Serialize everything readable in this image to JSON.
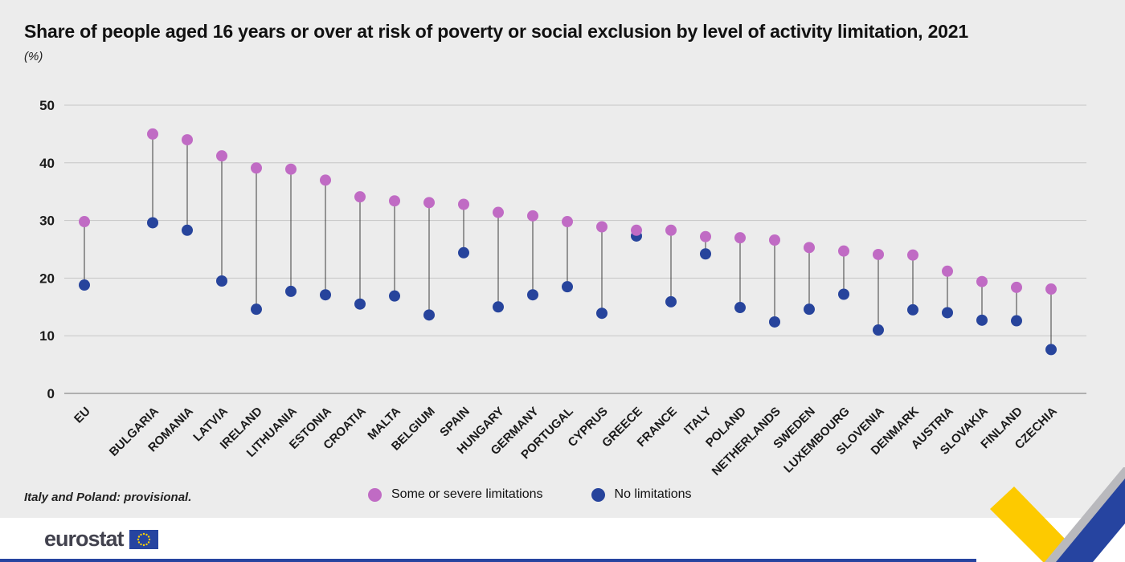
{
  "header": {
    "subtitle": "(%)"
  },
  "note_label": "Italy and Poland: provisional.",
  "footer": {
    "logo_text": "eurostat"
  },
  "chart_data": {
    "type": "scatter",
    "variant": "dumbbell",
    "title": "Share of people aged 16 years or over at risk of poverty or social exclusion by level of activity limitation, 2021",
    "ylabel": "(%)",
    "note": "Italy and Poland: provisional.",
    "grid": true,
    "legend_position": "bottom",
    "ylim": [
      0,
      50
    ],
    "yticks": [
      0,
      10,
      20,
      30,
      40,
      50
    ],
    "categories": [
      "EU",
      "BULGARIA",
      "ROMANIA",
      "LATVIA",
      "IRELAND",
      "LITHUANIA",
      "ESTONIA",
      "CROATIA",
      "MALTA",
      "BELGIUM",
      "SPAIN",
      "HUNGARY",
      "GERMANY",
      "PORTUGAL",
      "CYPRUS",
      "GREECE",
      "FRANCE",
      "ITALY",
      "POLAND",
      "NETHERLANDS",
      "SWEDEN",
      "LUXEMBOURG",
      "SLOVENIA",
      "DENMARK",
      "AUSTRIA",
      "SLOVAKIA",
      "FINLAND",
      "CZECHIA"
    ],
    "series": [
      {
        "name": "Some or severe limitations",
        "color": "#c06bc4",
        "values": [
          29.8,
          45.0,
          44.0,
          41.2,
          39.1,
          38.9,
          37.0,
          34.1,
          33.4,
          33.1,
          32.8,
          31.4,
          30.8,
          29.8,
          28.9,
          28.3,
          28.3,
          27.2,
          27.0,
          26.6,
          25.3,
          24.7,
          24.1,
          24.0,
          21.2,
          19.4,
          18.4,
          18.1
        ]
      },
      {
        "name": "No limitations",
        "color": "#27449c",
        "values": [
          18.8,
          29.6,
          28.3,
          19.5,
          14.6,
          17.7,
          17.1,
          15.5,
          16.9,
          13.6,
          24.4,
          15.0,
          17.1,
          18.5,
          13.9,
          27.3,
          15.9,
          24.2,
          14.9,
          12.4,
          14.6,
          17.2,
          11.0,
          14.5,
          14.0,
          12.7,
          12.6,
          7.6
        ]
      }
    ],
    "connector_color": "#3c3c3c",
    "background": "#ececec"
  }
}
